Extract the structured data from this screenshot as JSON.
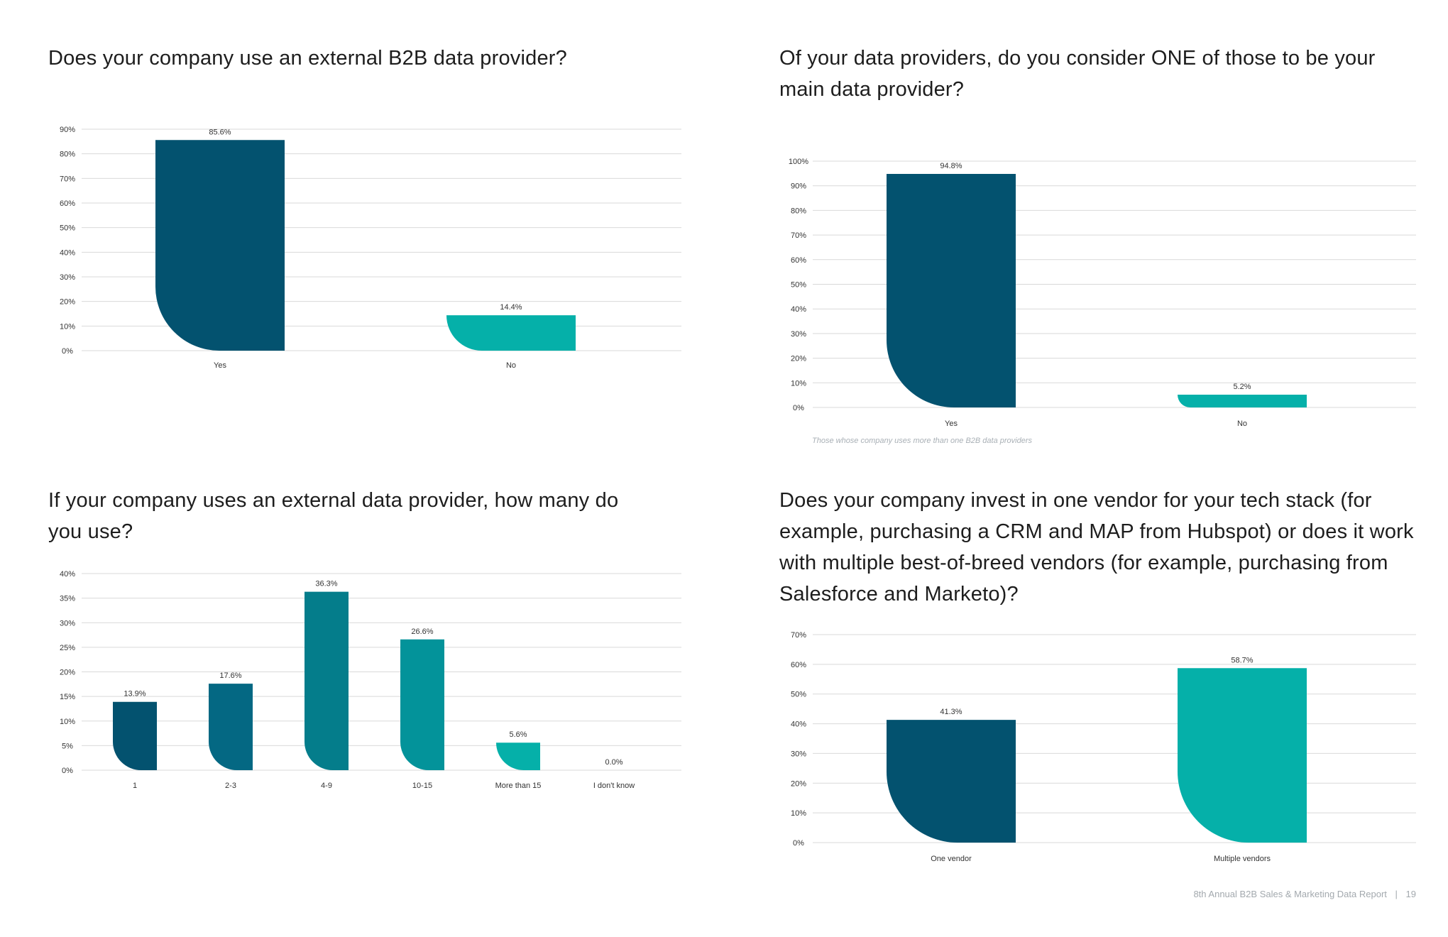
{
  "footer": {
    "report": "8th Annual B2B Sales & Marketing Data Report",
    "page": "19"
  },
  "colors": {
    "navy": "#03526f",
    "teal": "#05b0a9",
    "grid": "#d9d9d9",
    "text": "#333333"
  },
  "chart_data": [
    {
      "id": "q1",
      "type": "bar",
      "title": "Does your company use an external B2B data provider?",
      "categories": [
        "Yes",
        "No"
      ],
      "values": [
        85.6,
        14.4
      ],
      "value_labels": [
        "85.6%",
        "14.4%"
      ],
      "colors": [
        "#03526f",
        "#05b0a9"
      ],
      "yticks": [
        0,
        10,
        20,
        30,
        40,
        50,
        60,
        70,
        80,
        90
      ],
      "ytick_labels": [
        "0%",
        "10%",
        "20%",
        "30%",
        "40%",
        "50%",
        "60%",
        "70%",
        "80%",
        "90%"
      ],
      "ylim": [
        0,
        90
      ],
      "xlabel": "",
      "ylabel": ""
    },
    {
      "id": "q2",
      "type": "bar",
      "title": "Of your data providers, do you consider ONE of those to be your main data provider?",
      "categories": [
        "Yes",
        "No"
      ],
      "values": [
        94.8,
        5.2
      ],
      "value_labels": [
        "94.8%",
        "5.2%"
      ],
      "colors": [
        "#03526f",
        "#05b0a9"
      ],
      "yticks": [
        0,
        10,
        20,
        30,
        40,
        50,
        60,
        70,
        80,
        90,
        100
      ],
      "ytick_labels": [
        "0%",
        "10%",
        "20%",
        "30%",
        "40%",
        "50%",
        "60%",
        "70%",
        "80%",
        "90%",
        "100%"
      ],
      "ylim": [
        0,
        100
      ],
      "xlabel": "",
      "ylabel": "",
      "note": "Those whose company uses more than one B2B data providers"
    },
    {
      "id": "q3",
      "type": "bar",
      "title": "If your company uses an external data provider, how many do you use?",
      "categories": [
        "1",
        "2-3",
        "4-9",
        "10-15",
        "More than 15",
        "I don't know"
      ],
      "values": [
        13.9,
        17.6,
        36.3,
        26.6,
        5.6,
        0.0
      ],
      "value_labels": [
        "13.9%",
        "17.6%",
        "36.3%",
        "26.6%",
        "5.6%",
        "0.0%"
      ],
      "colors": [
        "#03526f",
        "#046883",
        "#047d8b",
        "#03939a",
        "#05b0a9",
        "#05b0a9"
      ],
      "yticks": [
        0,
        5,
        10,
        15,
        20,
        25,
        30,
        35,
        40
      ],
      "ytick_labels": [
        "0%",
        "5%",
        "10%",
        "15%",
        "20%",
        "25%",
        "30%",
        "35%",
        "40%"
      ],
      "ylim": [
        0,
        40
      ],
      "xlabel": "",
      "ylabel": ""
    },
    {
      "id": "q4",
      "type": "bar",
      "title": "Does your company invest in one vendor for your tech stack (for example, purchasing a CRM and MAP from Hubspot) or does it work with multiple best-of-breed vendors (for example, purchasing from Salesforce and Marketo)?",
      "categories": [
        "One vendor",
        "Multiple vendors"
      ],
      "values": [
        41.3,
        58.7
      ],
      "value_labels": [
        "41.3%",
        "58.7%"
      ],
      "colors": [
        "#03526f",
        "#05b0a9"
      ],
      "yticks": [
        0,
        10,
        20,
        30,
        40,
        50,
        60,
        70
      ],
      "ytick_labels": [
        "0%",
        "10%",
        "20%",
        "30%",
        "40%",
        "50%",
        "60%",
        "70%"
      ],
      "ylim": [
        0,
        70
      ],
      "xlabel": "",
      "ylabel": ""
    }
  ]
}
